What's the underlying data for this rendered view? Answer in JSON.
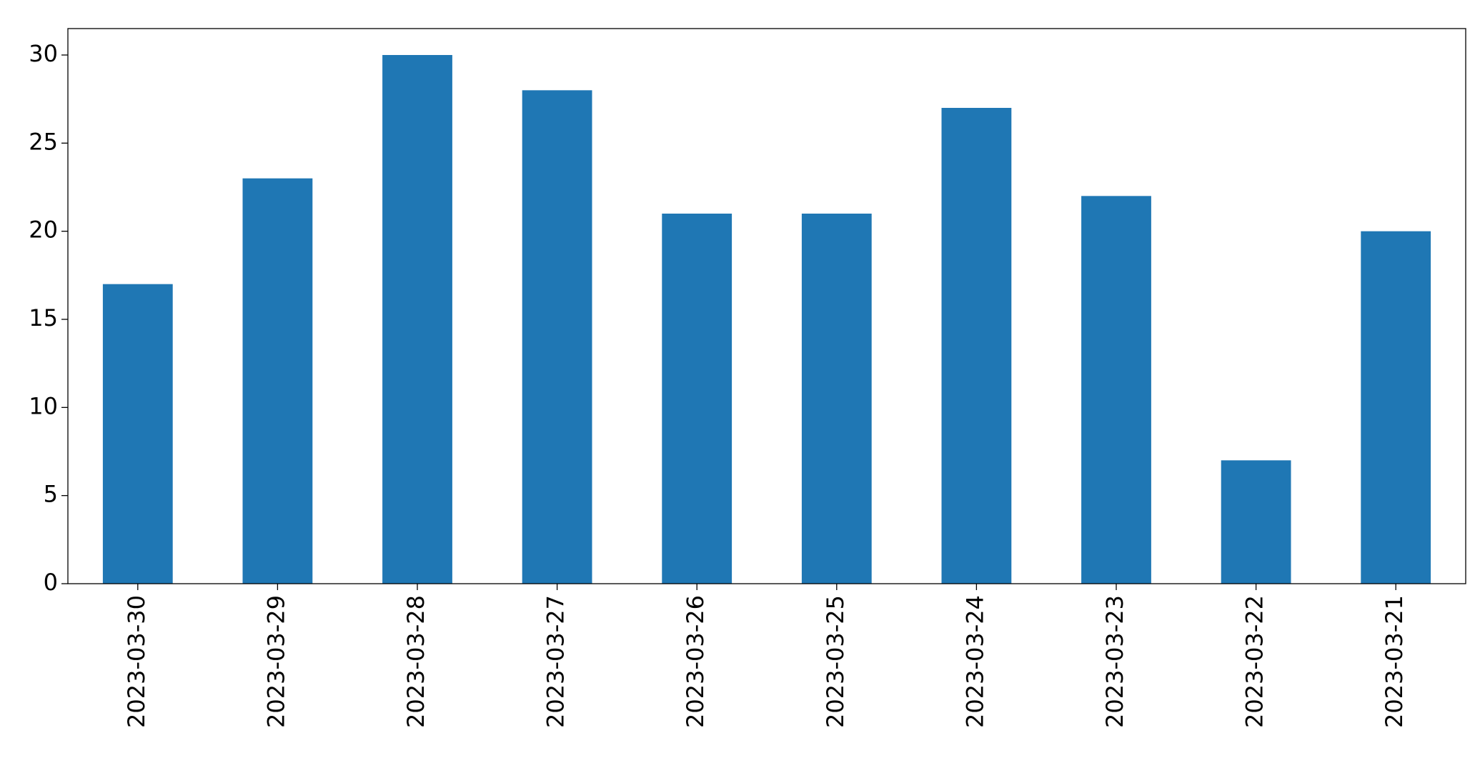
{
  "chart_data": {
    "type": "bar",
    "categories": [
      "2023-03-30",
      "2023-03-29",
      "2023-03-28",
      "2023-03-27",
      "2023-03-26",
      "2023-03-25",
      "2023-03-24",
      "2023-03-23",
      "2023-03-22",
      "2023-03-21"
    ],
    "values": [
      17,
      23,
      30,
      28,
      21,
      21,
      27,
      22,
      7,
      20
    ],
    "color": "#1f77b4",
    "ylim": [
      0,
      31.5
    ],
    "yticks": [
      0,
      5,
      10,
      15,
      20,
      25,
      30
    ],
    "grid": false
  }
}
